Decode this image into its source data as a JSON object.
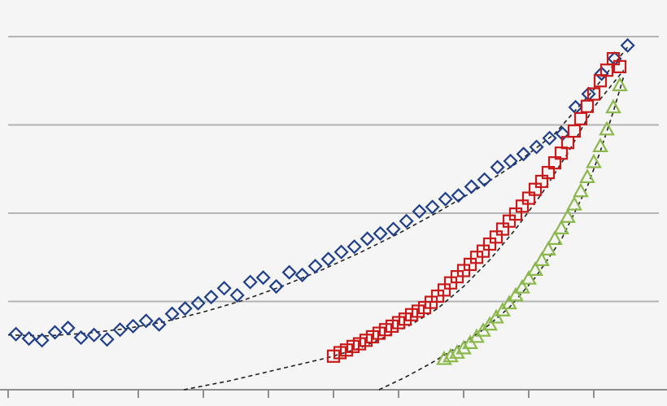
{
  "chart_data": {
    "type": "scatter",
    "title": "",
    "xlabel": "",
    "ylabel": "",
    "xlim": [
      0,
      50
    ],
    "ylim": [
      0,
      4
    ],
    "grid": true,
    "grid_color": "#b4b4b4",
    "background": "#f5f5f5",
    "xticks": [
      0,
      5,
      10,
      15,
      20,
      25,
      30,
      35,
      40,
      45
    ],
    "yticks": [
      1,
      2,
      3,
      4
    ],
    "series": [
      {
        "marker": "diamond",
        "color": "#1f3f8a",
        "x": [
          0.6,
          1.6,
          2.6,
          3.6,
          4.6,
          5.6,
          6.6,
          7.6,
          8.6,
          9.6,
          10.6,
          11.6,
          12.6,
          13.6,
          14.6,
          15.6,
          16.6,
          17.6,
          18.6,
          19.6,
          20.6,
          21.6,
          22.6,
          23.6,
          24.6,
          25.6,
          26.6,
          27.6,
          28.6,
          29.6,
          30.6,
          31.6,
          32.6,
          33.6,
          34.6,
          35.6,
          36.6,
          37.6,
          38.6,
          39.6,
          40.6,
          41.6,
          42.6,
          43.6,
          44.6,
          45.6,
          46.6,
          47.6
        ],
        "y": [
          0.63,
          0.58,
          0.56,
          0.65,
          0.7,
          0.59,
          0.62,
          0.57,
          0.68,
          0.72,
          0.78,
          0.74,
          0.86,
          0.92,
          0.98,
          1.05,
          1.15,
          1.07,
          1.22,
          1.27,
          1.17,
          1.33,
          1.3,
          1.4,
          1.48,
          1.56,
          1.62,
          1.71,
          1.77,
          1.82,
          1.91,
          2.02,
          2.07,
          2.16,
          2.2,
          2.3,
          2.38,
          2.52,
          2.59,
          2.67,
          2.75,
          2.85,
          2.9,
          3.2,
          3.35,
          3.58,
          3.75,
          3.9
        ]
      },
      {
        "marker": "square",
        "color": "#c81a1a",
        "x": [
          25.0,
          25.5,
          26.0,
          26.5,
          27.0,
          27.5,
          28.0,
          28.5,
          29.0,
          29.5,
          30.0,
          30.5,
          31.0,
          31.5,
          32.0,
          32.5,
          33.0,
          33.5,
          34.0,
          34.5,
          35.0,
          35.5,
          36.0,
          36.5,
          37.0,
          37.5,
          38.0,
          38.5,
          39.0,
          39.5,
          40.0,
          40.5,
          41.0,
          41.5,
          42.0,
          42.5,
          43.0,
          43.5,
          44.0,
          44.5,
          45.0,
          45.5,
          46.0,
          46.5,
          47.0
        ],
        "y": [
          0.38,
          0.42,
          0.45,
          0.49,
          0.52,
          0.56,
          0.6,
          0.64,
          0.68,
          0.72,
          0.76,
          0.8,
          0.85,
          0.89,
          0.93,
          0.99,
          1.06,
          1.13,
          1.21,
          1.28,
          1.35,
          1.42,
          1.5,
          1.57,
          1.65,
          1.73,
          1.82,
          1.91,
          1.99,
          2.08,
          2.17,
          2.27,
          2.36,
          2.46,
          2.57,
          2.68,
          2.8,
          2.93,
          3.07,
          3.21,
          3.35,
          3.5,
          3.62,
          3.75,
          3.66
        ]
      },
      {
        "marker": "triangle",
        "color": "#8ab84a",
        "x": [
          33.5,
          34.0,
          34.5,
          35.0,
          35.5,
          36.0,
          36.5,
          37.0,
          37.5,
          38.0,
          38.5,
          39.0,
          39.5,
          40.0,
          40.5,
          41.0,
          41.5,
          42.0,
          42.5,
          43.0,
          43.5,
          44.0,
          44.5,
          45.0,
          45.5,
          46.0,
          46.5,
          47.0
        ],
        "y": [
          0.35,
          0.38,
          0.42,
          0.47,
          0.53,
          0.6,
          0.67,
          0.74,
          0.82,
          0.9,
          0.98,
          1.07,
          1.16,
          1.26,
          1.36,
          1.47,
          1.59,
          1.71,
          1.83,
          1.96,
          2.1,
          2.25,
          2.41,
          2.58,
          2.76,
          2.95,
          3.2,
          3.45
        ]
      }
    ],
    "trendlines": [
      {
        "style": "dashed",
        "color": "#222222",
        "x": [
          0,
          3,
          6,
          9,
          12,
          15,
          18,
          21,
          24,
          27,
          30,
          33,
          36,
          39,
          42,
          45,
          47.7
        ],
        "y": [
          0.62,
          0.61,
          0.64,
          0.69,
          0.77,
          0.88,
          1.01,
          1.17,
          1.35,
          1.55,
          1.77,
          2.01,
          2.27,
          2.56,
          2.9,
          3.4,
          3.9
        ]
      },
      {
        "style": "dashed",
        "color": "#222222",
        "x": [
          13.5,
          17,
          21,
          24.5,
          27,
          29,
          31,
          33,
          35,
          37,
          39,
          41,
          43,
          45,
          47.3
        ],
        "y": [
          0.0,
          0.1,
          0.24,
          0.36,
          0.47,
          0.6,
          0.74,
          0.92,
          1.17,
          1.47,
          1.82,
          2.22,
          2.68,
          3.2,
          3.62
        ]
      },
      {
        "style": "dashed",
        "color": "#222222",
        "x": [
          28.5,
          30.5,
          32.5,
          34.5,
          36.5,
          38.5,
          40.5,
          42.5,
          44.5,
          45.5,
          46.5,
          47.3
        ],
        "y": [
          0.0,
          0.14,
          0.3,
          0.48,
          0.68,
          0.93,
          1.27,
          1.7,
          2.3,
          2.7,
          3.15,
          3.55
        ]
      }
    ]
  }
}
